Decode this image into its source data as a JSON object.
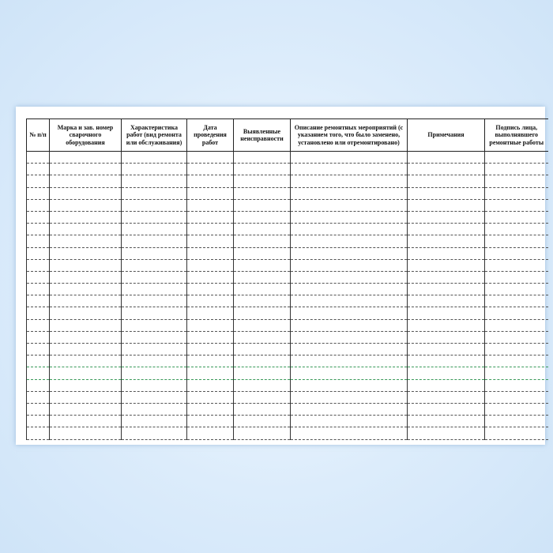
{
  "document": {
    "columns": [
      "№ п/п",
      "Марка и зав. номер сварочного оборудования",
      "Характеристика работ (вид ремонта или обслуживания)",
      "Дата проведения работ",
      "Выявленные неисправности",
      "Описание ремонтных мероприятий (с указанием того, что было заменено, установлено или отремонтировано)",
      "Примечания",
      "Подпись лица, выполнявшего ремонтные работы"
    ],
    "empty_rows": 24,
    "colors": {
      "background": "#dcecfb",
      "paper": "#ffffff",
      "lines": "#222222"
    }
  }
}
